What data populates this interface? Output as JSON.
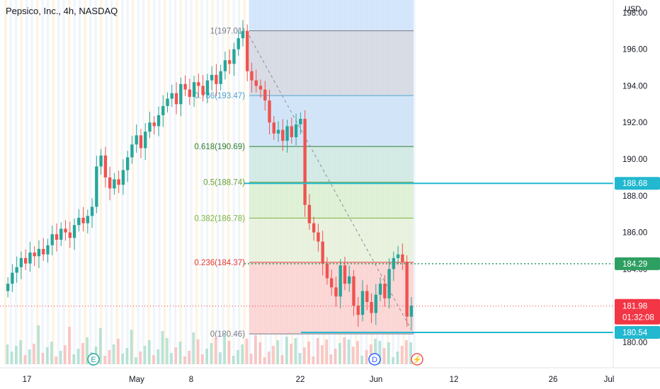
{
  "header": {
    "title": "Pepsico, Inc., 4h, NASDAQ"
  },
  "axis": {
    "currency": "USD",
    "price_ticks": [
      "180.00",
      "182.00",
      "184.00",
      "186.00",
      "188.00",
      "190.00",
      "192.00",
      "194.00",
      "196.00",
      "198.00"
    ],
    "date_ticks": [
      {
        "label": "17",
        "x": 38
      },
      {
        "label": "May",
        "x": 193
      },
      {
        "label": "8",
        "x": 270
      },
      {
        "label": "22",
        "x": 424
      },
      {
        "label": "Jun",
        "x": 531
      },
      {
        "label": "12",
        "x": 641
      },
      {
        "label": "26",
        "x": 781
      },
      {
        "label": "Jul",
        "x": 860
      }
    ]
  },
  "fib": {
    "levels": [
      {
        "ratio": "1",
        "price": "197.01",
        "label": "1(197.01)",
        "color": "#787b86"
      },
      {
        "ratio": "0.786",
        "price": "193.47",
        "label": "0.786(193.47)",
        "color": "#4fa3d1"
      },
      {
        "ratio": "0.618",
        "price": "190.69",
        "label": "0.618(190.69)",
        "color": "#2e7d32"
      },
      {
        "ratio": "0.5",
        "price": "188.74",
        "label": "0.5(188.74)",
        "color": "#689f38"
      },
      {
        "ratio": "0.382",
        "price": "186.78",
        "label": "0.382(186.78)",
        "color": "#7cb342"
      },
      {
        "ratio": "0.236",
        "price": "184.37",
        "label": "0.236(184.37)",
        "color": "#e53935"
      },
      {
        "ratio": "0",
        "price": "180.46",
        "label": "0(180.46)",
        "color": "#787b86"
      }
    ]
  },
  "price_badges": {
    "resistance": "188.68",
    "support_upper": "184.29",
    "last_price": "181.98",
    "countdown": "01:32:08",
    "support_lower": "180.54"
  },
  "colors": {
    "up": "#26a69a",
    "down": "#ef5350",
    "cyan": "#22b8cf",
    "green_line": "#2e9f62",
    "red_line": "#f23645"
  },
  "event_markers": [
    {
      "letter": "E",
      "name": "earnings-marker"
    },
    {
      "letter": "D",
      "name": "dividend-marker"
    },
    {
      "letter": "⚡",
      "name": "split-marker"
    }
  ],
  "chart_data": {
    "type": "candlestick",
    "ylim": [
      179.5,
      198.3
    ],
    "series": [
      {
        "values": [
          183.2,
          183.8,
          184.1,
          184.6,
          184.3,
          184.9,
          184.7,
          185.1,
          184.8,
          185.3,
          185.9,
          185.6,
          186.2,
          186.0,
          185.7,
          186.4,
          186.8,
          186.5,
          186.9,
          187.4,
          189.6,
          190.2,
          189.0,
          188.4,
          188.9,
          188.6,
          189.4,
          190.1,
          190.8,
          191.3,
          190.6,
          191.5,
          192.0,
          191.8,
          192.4,
          192.9,
          193.3,
          193.6,
          193.0,
          194.1,
          193.8,
          193.4,
          194.2,
          194.0,
          193.5,
          194.3,
          194.6,
          194.1,
          194.8,
          195.4,
          195.2,
          196.0,
          196.6,
          197.0,
          194.8,
          194.3,
          194.0,
          193.8,
          193.2,
          192.0,
          191.4,
          191.6,
          191.0,
          191.8,
          191.2,
          191.9,
          192.2,
          187.5,
          186.5,
          186.0,
          185.5,
          184.3,
          183.5,
          183.0,
          182.5,
          184.2,
          183.2,
          183.6,
          182.0,
          181.5,
          182.8,
          182.2,
          181.6,
          182.6,
          183.2,
          182.4,
          184.0,
          184.6,
          184.8,
          184.4,
          181.4,
          182.0
        ]
      }
    ]
  }
}
